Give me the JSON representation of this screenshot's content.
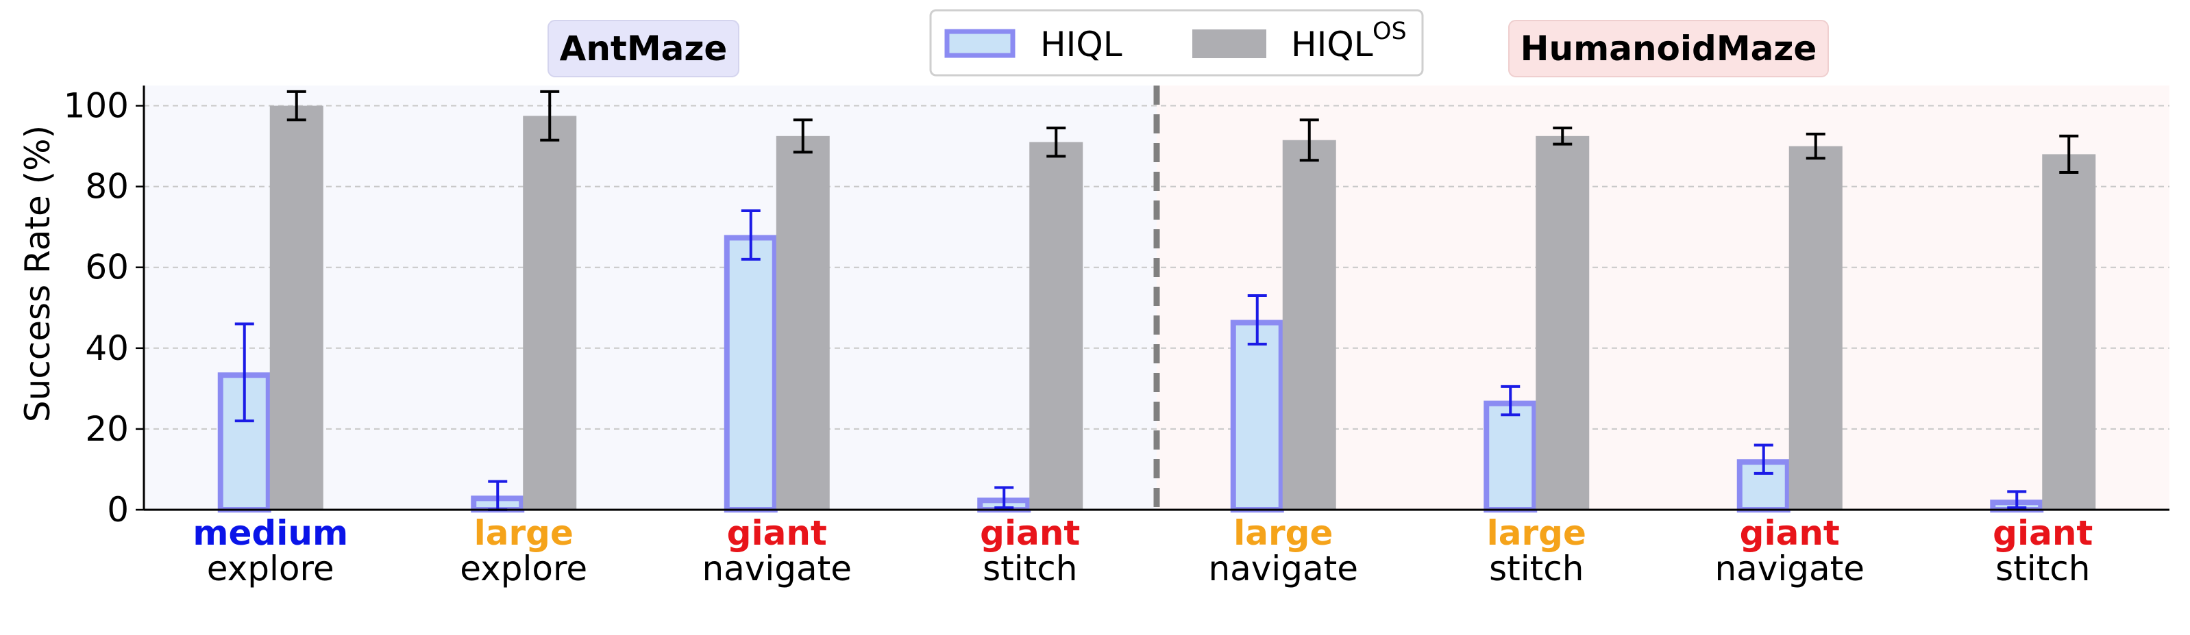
{
  "chart_data": {
    "type": "bar",
    "ylabel": "Success Rate (%)",
    "ylim": [
      0,
      105
    ],
    "yticks": [
      0,
      20,
      40,
      60,
      80,
      100
    ],
    "grid": "horizontal dashed",
    "legend_placement": "top-center",
    "groups": [
      {
        "title": "AntMaze",
        "color": "#e6e7fa",
        "categories": [
          0,
          1,
          2,
          3
        ]
      },
      {
        "title": "HumanoidMaze",
        "color": "#fbe3e3",
        "categories": [
          4,
          5,
          6,
          7
        ]
      }
    ],
    "categories": [
      {
        "size": "medium",
        "size_color": "#0a14e8",
        "task": "explore"
      },
      {
        "size": "large",
        "size_color": "#f5a31a",
        "task": "explore"
      },
      {
        "size": "giant",
        "size_color": "#e8141a",
        "task": "navigate"
      },
      {
        "size": "giant",
        "size_color": "#e8141a",
        "task": "stitch"
      },
      {
        "size": "large",
        "size_color": "#f5a31a",
        "task": "navigate"
      },
      {
        "size": "large",
        "size_color": "#f5a31a",
        "task": "stitch"
      },
      {
        "size": "giant",
        "size_color": "#e8141a",
        "task": "navigate"
      },
      {
        "size": "giant",
        "size_color": "#e8141a",
        "task": "stitch"
      }
    ],
    "series": [
      {
        "name": "HIQL",
        "superscript": "",
        "fill": "#c9e2f7",
        "edge": "#8b8bf2",
        "err_color": "#1b1be6",
        "values": [
          34,
          3.5,
          68,
          3,
          47,
          27,
          12.5,
          2.5
        ],
        "errors": [
          12,
          3.5,
          6,
          2.5,
          6,
          3.5,
          3.5,
          2
        ]
      },
      {
        "name": "HIQL",
        "superscript": "OS",
        "fill": "#aeaeb2",
        "edge": "#aeaeb2",
        "err_color": "#000000",
        "values": [
          100,
          97.5,
          92.5,
          91,
          91.5,
          92.5,
          90,
          88
        ],
        "errors": [
          3.5,
          6,
          4,
          3.5,
          5,
          2,
          3,
          4.5
        ]
      }
    ]
  }
}
